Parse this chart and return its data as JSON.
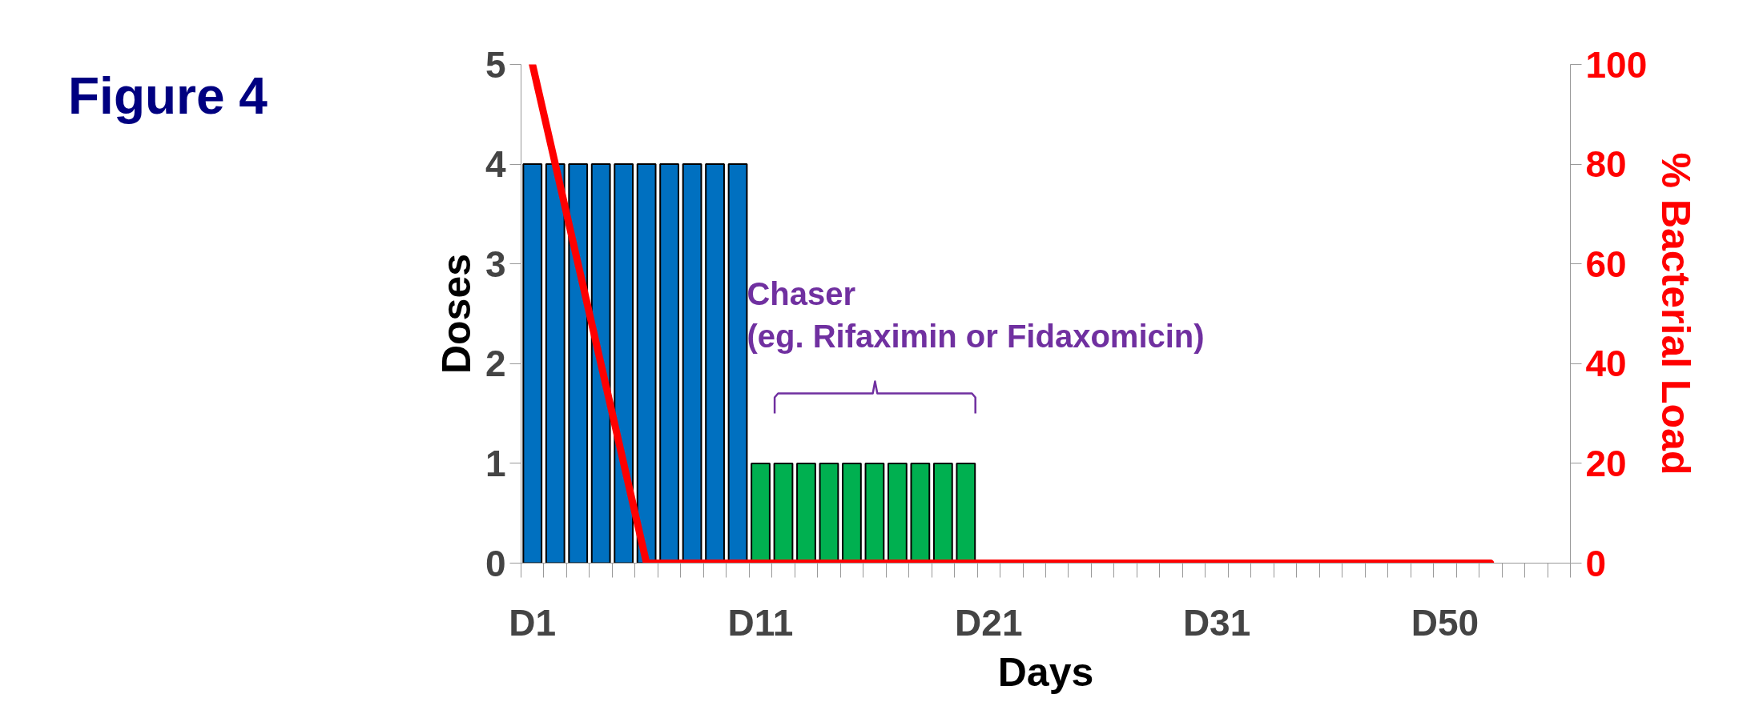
{
  "chart_data": {
    "type": "bar",
    "title": "Figure 4",
    "xlabel": "Days",
    "ylabel": "Doses",
    "y2label": "% Bacterial Load",
    "categories": [
      "D1",
      null,
      null,
      null,
      null,
      null,
      null,
      null,
      null,
      null,
      "D11",
      null,
      null,
      null,
      null,
      null,
      null,
      null,
      null,
      null,
      "D21",
      null,
      null,
      null,
      null,
      null,
      null,
      null,
      null,
      null,
      "D31",
      null,
      null,
      null,
      null,
      null,
      null,
      null,
      null,
      null,
      "D50",
      null,
      null,
      null,
      null,
      null
    ],
    "series": [
      {
        "color": "#0070c0",
        "values": [
          4,
          4,
          4,
          4,
          4,
          4,
          4,
          4,
          4,
          4,
          null,
          null,
          null,
          null,
          null,
          null,
          null,
          null,
          null,
          null,
          null,
          null,
          null,
          null,
          null,
          null,
          null,
          null,
          null,
          null,
          null,
          null,
          null,
          null,
          null,
          null,
          null,
          null,
          null,
          null,
          null,
          null,
          null,
          null,
          null,
          null
        ]
      },
      {
        "color": "#00b050",
        "values": [
          null,
          null,
          null,
          null,
          null,
          null,
          null,
          null,
          null,
          null,
          1,
          1,
          1,
          1,
          1,
          1,
          1,
          1,
          1,
          1,
          null,
          null,
          null,
          null,
          null,
          null,
          null,
          null,
          null,
          null,
          null,
          null,
          null,
          null,
          null,
          null,
          null,
          null,
          null,
          null,
          null,
          null,
          null,
          null,
          null,
          null
        ]
      },
      {
        "type": "line",
        "axis": "y2",
        "color": "#ff0000",
        "values": [
          100,
          80,
          60,
          40,
          20,
          0,
          0,
          0,
          0,
          0,
          0,
          0,
          0,
          0,
          0,
          0,
          0,
          0,
          0,
          0,
          0,
          0,
          0,
          0,
          0,
          0,
          0,
          0,
          0,
          0,
          0,
          0,
          0,
          0,
          0,
          0,
          0,
          0,
          0,
          0,
          0,
          0,
          0,
          null,
          null,
          null
        ]
      }
    ],
    "ylim": [
      0,
      5
    ],
    "yticks": [
      0,
      1,
      2,
      3,
      4,
      5
    ],
    "y2lim": [
      0,
      100
    ],
    "y2ticks": [
      0,
      20,
      40,
      60,
      80,
      100
    ],
    "annotations": [
      "Chaser\n(eg. Rifaximin or Fidaxomicin)"
    ],
    "grid": false
  }
}
